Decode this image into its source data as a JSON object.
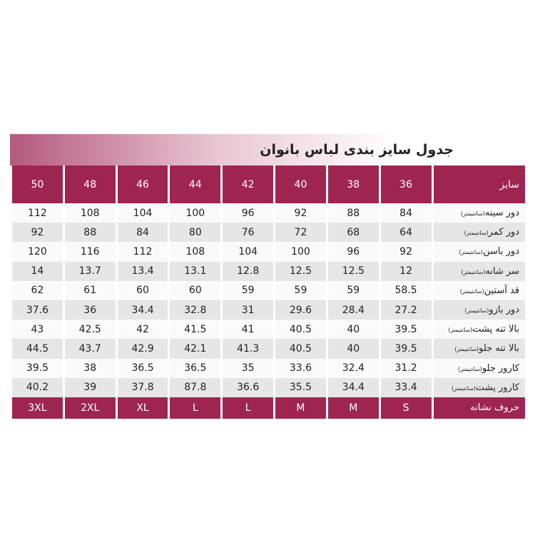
{
  "title": "جدول سایز بندی  لباس  بانوان",
  "header": {
    "label": "سایز",
    "sizes": [
      36,
      38,
      40,
      42,
      44,
      46,
      48,
      50
    ]
  },
  "rows": [
    {
      "label": "دور سینه",
      "unit": "(سانتیمتر)",
      "values": [
        84,
        88,
        92,
        96,
        100,
        104,
        108,
        112
      ]
    },
    {
      "label": "دور کمر",
      "unit": "(سانتیمتر)",
      "values": [
        64,
        68,
        72,
        76,
        80,
        84,
        88,
        92
      ]
    },
    {
      "label": "دور باسن",
      "unit": "(سانتیمتر)",
      "values": [
        92,
        96,
        100,
        104,
        108,
        112,
        116,
        120
      ]
    },
    {
      "label": "سر شانه",
      "unit": "(سانتیمتر)",
      "values": [
        12,
        12.5,
        12.5,
        12.8,
        13.1,
        13.4,
        13.7,
        14
      ]
    },
    {
      "label": "قد آستین",
      "unit": "(سانتیمتر)",
      "values": [
        58.5,
        59,
        59,
        59,
        60,
        60,
        61,
        62
      ]
    },
    {
      "label": "دور بازو",
      "unit": "(سانتیمتر)",
      "values": [
        27.2,
        28.4,
        29.6,
        31,
        32.8,
        34.4,
        36,
        37.6
      ]
    },
    {
      "label": "بالا تنه پشت",
      "unit": "(سانتیمتر)",
      "values": [
        39.5,
        40,
        40.5,
        41,
        41.5,
        42,
        42.5,
        43
      ]
    },
    {
      "label": "بالا تنه جلو",
      "unit": "(سانتیمتر)",
      "values": [
        39.5,
        40,
        40.5,
        41.3,
        42.1,
        42.9,
        43.7,
        44.5
      ]
    },
    {
      "label": "کارور جلو",
      "unit": "(سانتیمتر)",
      "values": [
        31.2,
        32.4,
        33.6,
        35,
        36.5,
        36.5,
        38,
        39.5
      ]
    },
    {
      "label": "کارور پشت",
      "unit": "(سانتیمتر)",
      "values": [
        33.4,
        34.4,
        35.5,
        36.6,
        87.8,
        37.8,
        39,
        40.2
      ]
    }
  ],
  "footer": {
    "label": "حروف نشانه",
    "letters": [
      "S",
      "M",
      "M",
      "L",
      "L",
      "XL",
      "2XL",
      "3XL"
    ]
  }
}
